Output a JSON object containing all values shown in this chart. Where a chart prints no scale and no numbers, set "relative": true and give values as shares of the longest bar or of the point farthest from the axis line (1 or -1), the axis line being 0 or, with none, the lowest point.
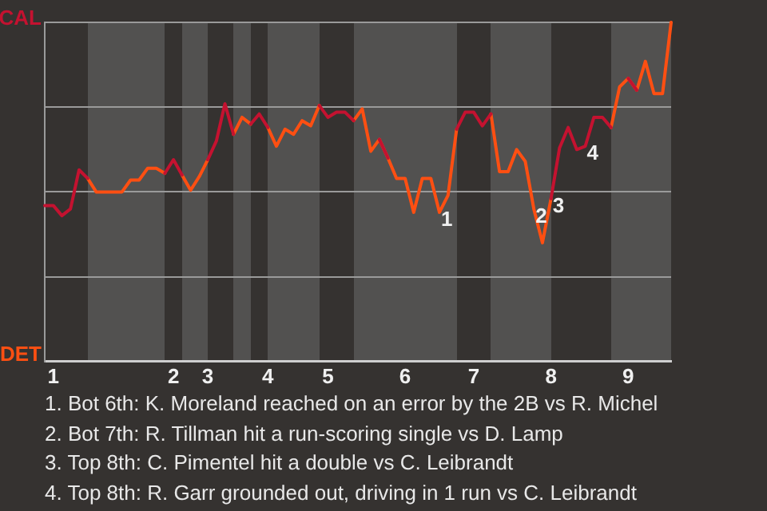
{
  "chart_data": {
    "type": "line",
    "relative": true,
    "categories": [
      null,
      "1",
      null,
      null,
      null,
      null,
      null,
      null,
      null,
      null,
      null,
      null,
      null,
      null,
      null,
      "2",
      null,
      null,
      null,
      "3",
      null,
      null,
      null,
      null,
      null,
      null,
      "4",
      null,
      null,
      null,
      null,
      null,
      null,
      "5",
      null,
      null,
      null,
      null,
      null,
      null,
      null,
      null,
      "6",
      null,
      null,
      null,
      null,
      null,
      null,
      null,
      "7",
      null,
      null,
      null,
      null,
      null,
      null,
      null,
      null,
      "8",
      null,
      null,
      null,
      null,
      null,
      null,
      null,
      null,
      "9",
      null,
      null,
      null,
      null,
      null
    ],
    "series": [
      {
        "color": "#c41230",
        "values": [
          0.46,
          0.46,
          0.43,
          0.45,
          0.565,
          0.54,
          null,
          null,
          null,
          null,
          null,
          null,
          null,
          null,
          0.555,
          0.595,
          0.55,
          null,
          null,
          0.595,
          0.65,
          0.76,
          0.67,
          null,
          0.7,
          0.73,
          0.69,
          null,
          null,
          null,
          null,
          null,
          0.755,
          0.72,
          0.735,
          0.735,
          0.71,
          null,
          null,
          0.655,
          0.6,
          null,
          null,
          null,
          null,
          null,
          null,
          null,
          0.685,
          0.735,
          0.735,
          0.695,
          0.73,
          null,
          null,
          null,
          null,
          null,
          null,
          0.48,
          0.63,
          0.69,
          0.625,
          0.635,
          0.72,
          0.72,
          0.69,
          null,
          0.835,
          0.8,
          null,
          null,
          null,
          null
        ]
      },
      {
        "color": "#ff4f12",
        "values": [
          null,
          null,
          null,
          null,
          null,
          0.54,
          0.5,
          0.5,
          0.5,
          0.5,
          0.535,
          0.535,
          0.57,
          0.57,
          0.555,
          null,
          0.55,
          0.505,
          0.545,
          0.595,
          null,
          null,
          0.67,
          0.72,
          0.7,
          null,
          0.69,
          0.635,
          0.685,
          0.67,
          0.71,
          0.695,
          0.755,
          null,
          null,
          null,
          0.71,
          0.745,
          0.62,
          0.655,
          0.6,
          0.54,
          0.54,
          0.44,
          0.54,
          0.54,
          0.44,
          0.49,
          0.685,
          null,
          null,
          null,
          0.73,
          0.56,
          0.56,
          0.625,
          0.59,
          0.45,
          0.35,
          0.48,
          null,
          null,
          null,
          null,
          null,
          null,
          0.69,
          0.81,
          0.835,
          0.8,
          0.885,
          0.79,
          0.79,
          1.0
        ]
      }
    ],
    "grid": "y",
    "marker": "none",
    "annotations": [
      "CAL",
      "DET",
      {
        "text": "1",
        "y": 0.44
      },
      {
        "text": "2",
        "y": 0.45
      },
      {
        "text": "3",
        "y": 0.48
      },
      {
        "text": "4",
        "y": 0.635
      },
      "1. Bot 6th: K. Moreland reached on an error by the 2B vs R. Michel",
      "2. Bot 7th: R. Tillman hit a run-scoring single vs D. Lamp",
      "3. Top 8th: C. Pimentel hit a double vs C. Leibrandt",
      "4. Top 8th: R. Garr grounded out, driving in 1 run vs C. Leibrandt"
    ]
  }
}
